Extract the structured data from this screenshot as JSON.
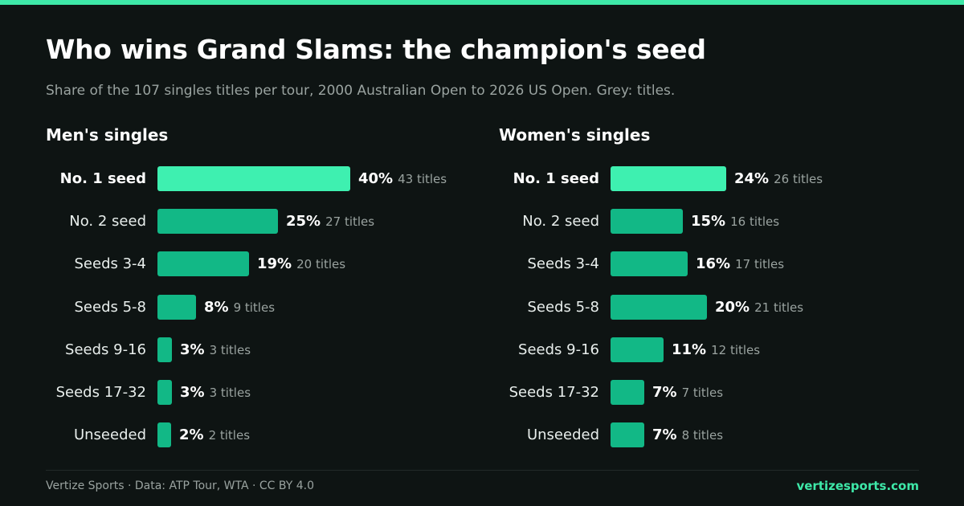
{
  "header": {
    "title": "Who wins Grand Slams: the champion's seed",
    "subtitle": "Share of the 107 singles titles per tour, 2000 Australian Open to 2026 US Open. Grey: titles."
  },
  "footer": {
    "source": "Vertize Sports · Data: ATP Tour, WTA · CC BY 4.0",
    "site": "vertizesports.com"
  },
  "colors": {
    "background": "#0e1413",
    "bar": "#12b886",
    "bar_highlight": "#3ef0b0",
    "accent": "#3ee8a8",
    "muted_text": "#9aa3a0"
  },
  "chart_data": [
    {
      "type": "bar",
      "orientation": "horizontal",
      "title": "Men's singles",
      "categories": [
        "No. 1 seed",
        "No. 2 seed",
        "Seeds 3-4",
        "Seeds 5-8",
        "Seeds 9-16",
        "Seeds 17-32",
        "Unseeded"
      ],
      "values": [
        40,
        25,
        19,
        8,
        3,
        3,
        2
      ],
      "value_labels": [
        "40%",
        "25%",
        "19%",
        "8%",
        "3%",
        "3%",
        "2%"
      ],
      "counts": [
        43,
        27,
        20,
        9,
        3,
        3,
        2
      ],
      "count_labels": [
        "43 titles",
        "27 titles",
        "20 titles",
        "9 titles",
        "3 titles",
        "3 titles",
        "2 titles"
      ],
      "highlight_index": 0
    },
    {
      "type": "bar",
      "orientation": "horizontal",
      "title": "Women's singles",
      "categories": [
        "No. 1 seed",
        "No. 2 seed",
        "Seeds 3-4",
        "Seeds 5-8",
        "Seeds 9-16",
        "Seeds 17-32",
        "Unseeded"
      ],
      "values": [
        24,
        15,
        16,
        20,
        11,
        7,
        7
      ],
      "value_labels": [
        "24%",
        "15%",
        "16%",
        "20%",
        "11%",
        "7%",
        "7%"
      ],
      "counts": [
        26,
        16,
        17,
        21,
        12,
        7,
        8
      ],
      "count_labels": [
        "26 titles",
        "16 titles",
        "17 titles",
        "21 titles",
        "12 titles",
        "7 titles",
        "8 titles"
      ],
      "highlight_index": 0
    }
  ]
}
